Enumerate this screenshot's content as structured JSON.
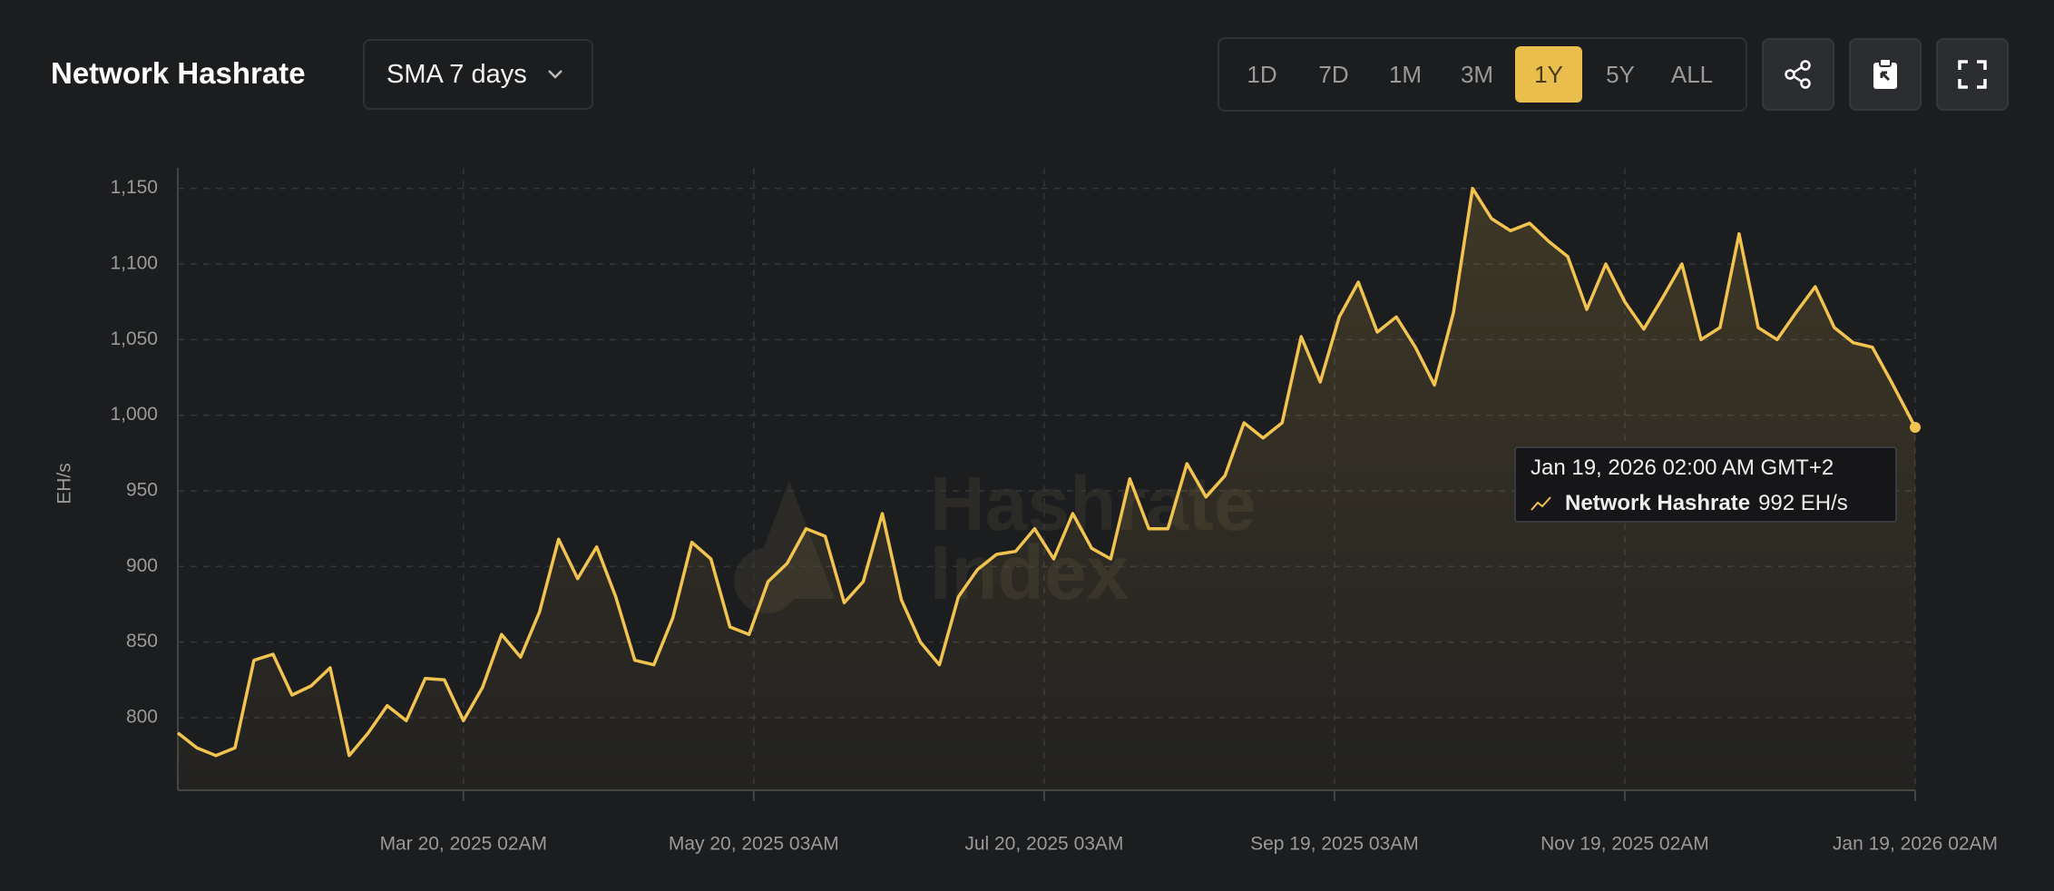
{
  "header": {
    "title": "Network Hashrate",
    "metric": "SMA 7 days",
    "ranges": [
      "1D",
      "7D",
      "1M",
      "3M",
      "1Y",
      "5Y",
      "ALL"
    ],
    "active_range": "1Y"
  },
  "chart_data": {
    "type": "line",
    "y_label": "EH/s",
    "watermark": [
      "Hashrate",
      "Index"
    ],
    "x": [
      "2025-01-19",
      "2025-01-23",
      "2025-01-27",
      "2025-01-31",
      "2025-02-04",
      "2025-02-08",
      "2025-02-12",
      "2025-02-16",
      "2025-02-20",
      "2025-02-24",
      "2025-02-28",
      "2025-03-04",
      "2025-03-08",
      "2025-03-12",
      "2025-03-16",
      "2025-03-20",
      "2025-03-24",
      "2025-03-28",
      "2025-04-01",
      "2025-04-05",
      "2025-04-09",
      "2025-04-13",
      "2025-04-17",
      "2025-04-21",
      "2025-04-25",
      "2025-04-29",
      "2025-05-03",
      "2025-05-07",
      "2025-05-11",
      "2025-05-15",
      "2025-05-19",
      "2025-05-23",
      "2025-05-27",
      "2025-05-31",
      "2025-06-04",
      "2025-06-08",
      "2025-06-12",
      "2025-06-16",
      "2025-06-20",
      "2025-06-24",
      "2025-06-28",
      "2025-07-02",
      "2025-07-06",
      "2025-07-10",
      "2025-07-14",
      "2025-07-18",
      "2025-07-22",
      "2025-07-26",
      "2025-07-30",
      "2025-08-03",
      "2025-08-07",
      "2025-08-11",
      "2025-08-15",
      "2025-08-19",
      "2025-08-23",
      "2025-08-27",
      "2025-08-31",
      "2025-09-04",
      "2025-09-08",
      "2025-09-12",
      "2025-09-16",
      "2025-09-20",
      "2025-09-24",
      "2025-09-28",
      "2025-10-02",
      "2025-10-06",
      "2025-10-10",
      "2025-10-14",
      "2025-10-18",
      "2025-10-22",
      "2025-10-26",
      "2025-10-30",
      "2025-11-03",
      "2025-11-07",
      "2025-11-11",
      "2025-11-15",
      "2025-11-19",
      "2025-11-23",
      "2025-11-27",
      "2025-12-01",
      "2025-12-05",
      "2025-12-09",
      "2025-12-13",
      "2025-12-17",
      "2025-12-21",
      "2025-12-25",
      "2025-12-29",
      "2026-01-02",
      "2026-01-06",
      "2026-01-10",
      "2026-01-14",
      "2026-01-18",
      "2026-01-19"
    ],
    "series": [
      {
        "name": "Network Hashrate",
        "color": "#f2c44f",
        "values": [
          790,
          780,
          775,
          780,
          838,
          842,
          815,
          821,
          833,
          775,
          790,
          808,
          798,
          826,
          825,
          798,
          820,
          855,
          840,
          870,
          918,
          892,
          913,
          880,
          838,
          835,
          866,
          916,
          905,
          860,
          855,
          890,
          902,
          925,
          920,
          876,
          890,
          935,
          878,
          850,
          835,
          880,
          898,
          908,
          910,
          925,
          905,
          935,
          912,
          905,
          958,
          925,
          925,
          968,
          946,
          960,
          995,
          985,
          995,
          1052,
          1022,
          1065,
          1088,
          1055,
          1065,
          1045,
          1020,
          1068,
          1150,
          1130,
          1122,
          1127,
          1115,
          1105,
          1070,
          1100,
          1075,
          1057,
          1078,
          1100,
          1050,
          1058,
          1120,
          1058,
          1050,
          1068,
          1085,
          1058,
          1048,
          1045,
          1022,
          998,
          992
        ]
      }
    ],
    "tooltip": {
      "date": "Jan 19, 2026 02:00 AM GMT+2",
      "value_label": "992 EH/s"
    },
    "xlim": [
      "2025-01-19",
      "2026-01-19"
    ],
    "xticks": [
      {
        "value": "2025-03-20",
        "label": "Mar 20, 2025 02AM"
      },
      {
        "value": "2025-05-20",
        "label": "May 20, 2025 03AM"
      },
      {
        "value": "2025-07-20",
        "label": "Jul 20, 2025 03AM"
      },
      {
        "value": "2025-09-19",
        "label": "Sep 19, 2025 03AM"
      },
      {
        "value": "2025-11-19",
        "label": "Nov 19, 2025 02AM"
      },
      {
        "value": "2026-01-19",
        "label": "Jan 19, 2026 02AM"
      }
    ],
    "ylim": [
      752,
      1160
    ],
    "yticks": [
      800,
      850,
      900,
      950,
      {
        "value": 1000,
        "label": "1,000"
      },
      {
        "value": 1050,
        "label": "1,050"
      },
      {
        "value": 1100,
        "label": "1,100"
      },
      {
        "value": 1150,
        "label": "1,150"
      }
    ],
    "grid": true
  }
}
